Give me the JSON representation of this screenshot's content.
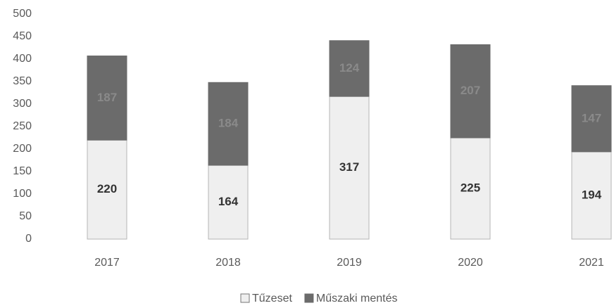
{
  "chart_data": {
    "type": "stacked_bar",
    "categories": [
      "2017",
      "2018",
      "2019",
      "2020",
      "2021"
    ],
    "series": [
      {
        "name": "Tűzeset",
        "color": "#efefef",
        "values": [
          220,
          164,
          317,
          225,
          194
        ]
      },
      {
        "name": "Műszaki mentés",
        "color": "#6b6b6b",
        "values": [
          187,
          184,
          124,
          207,
          147
        ]
      }
    ],
    "ylim": [
      0,
      500
    ],
    "yticks": [
      0,
      50,
      100,
      150,
      200,
      250,
      300,
      350,
      400,
      450,
      500
    ],
    "grid": false,
    "legend": "bottom"
  }
}
